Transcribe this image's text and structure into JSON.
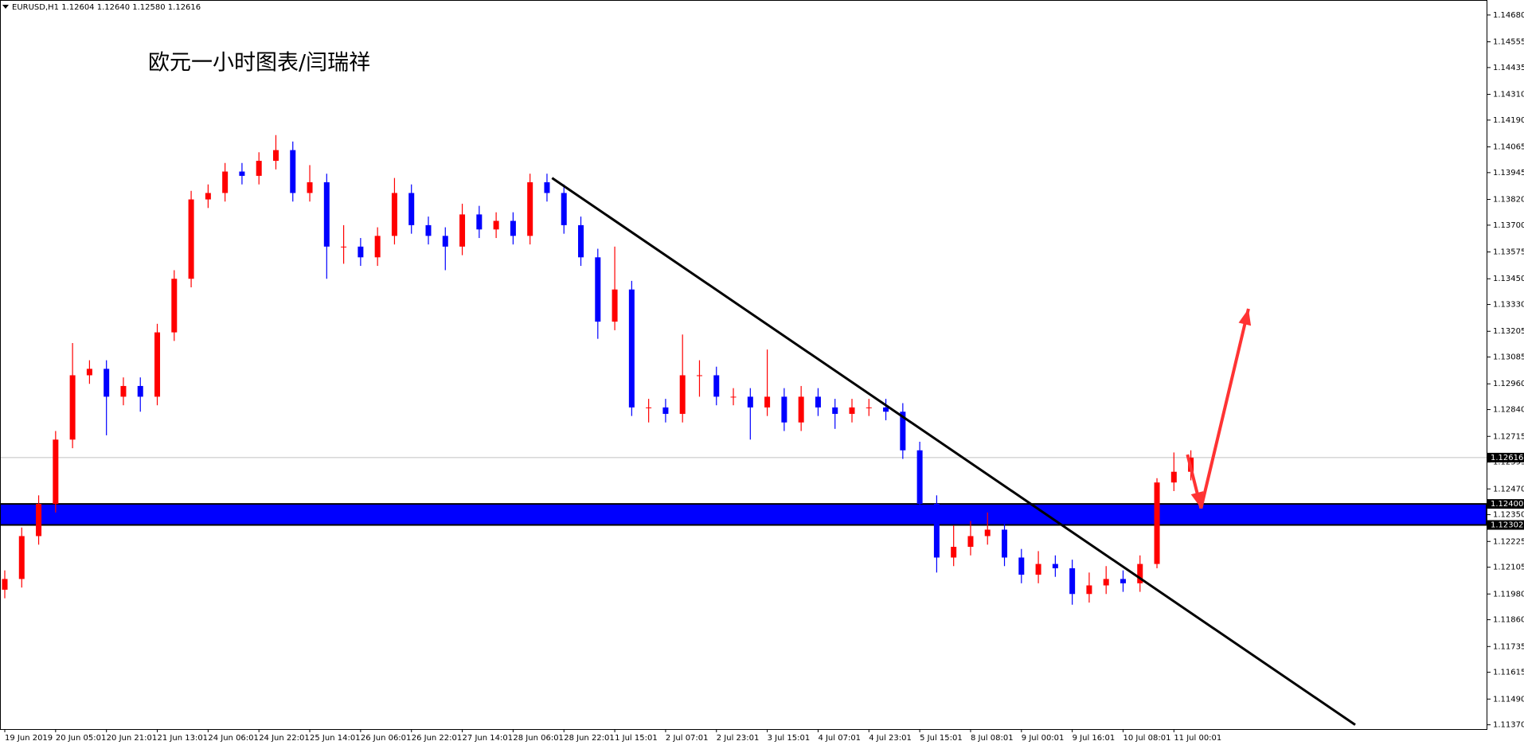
{
  "chart_data": {
    "type": "candlestick",
    "header": "EURUSD,H1  1.12604 1.12640 1.12580 1.12616",
    "title": "欧元一小时图表/闫瑞祥",
    "categories": [
      "19 Jun 2019",
      null,
      null,
      "20 Jun 05:01",
      null,
      null,
      "20 Jun 21:01",
      null,
      null,
      "21 Jun 13:01",
      null,
      null,
      "24 Jun 06:01",
      null,
      null,
      "24 Jun 22:01",
      null,
      null,
      "25 Jun 14:01",
      null,
      null,
      "26 Jun 06:01",
      null,
      null,
      "26 Jun 22:01",
      null,
      null,
      "27 Jun 14:01",
      null,
      null,
      "28 Jun 06:01",
      null,
      null,
      "28 Jun 22:01",
      null,
      null,
      "1 Jul 15:01",
      null,
      null,
      "2 Jul 07:01",
      null,
      null,
      "2 Jul 23:01",
      null,
      null,
      "3 Jul 15:01",
      null,
      null,
      "4 Jul 07:01",
      null,
      null,
      "4 Jul 23:01",
      null,
      null,
      "5 Jul 15:01",
      null,
      null,
      "8 Jul 08:01",
      null,
      null,
      "9 Jul 00:01",
      null,
      null,
      "9 Jul 16:01",
      null,
      null,
      "10 Jul 08:01",
      null,
      null,
      "11 Jul 00:01",
      null
    ],
    "open": [
      1.12,
      1.1205,
      1.1225,
      1.124,
      1.127,
      1.13,
      1.1303,
      1.129,
      1.1295,
      1.129,
      1.132,
      1.1345,
      1.1382,
      1.1385,
      1.1395,
      1.1393,
      1.14,
      1.1405,
      1.1385,
      1.139,
      1.136,
      1.136,
      1.1355,
      1.1365,
      1.1385,
      1.137,
      1.1365,
      1.136,
      1.1375,
      1.1368,
      1.1372,
      1.1365,
      1.139,
      1.1385,
      1.137,
      1.1355,
      1.1325,
      1.134,
      1.1285,
      1.1285,
      1.1282,
      1.13,
      1.13,
      1.129,
      1.129,
      1.1285,
      1.129,
      1.1278,
      1.129,
      1.1285,
      1.1282,
      1.1285,
      1.1285,
      1.1283,
      1.1265,
      1.124,
      1.1215,
      1.122,
      1.1225,
      1.1228,
      1.1215,
      1.1207,
      1.1212,
      1.121,
      1.1198,
      1.1202,
      1.1205,
      1.1203,
      1.1212,
      1.125,
      1.1255
    ],
    "high": [
      1.1209,
      1.1229,
      1.1244,
      1.1274,
      1.1315,
      1.1307,
      1.1307,
      1.1299,
      1.1299,
      1.1324,
      1.1349,
      1.1386,
      1.1389,
      1.1399,
      1.1399,
      1.1404,
      1.1412,
      1.1409,
      1.1398,
      1.1394,
      1.137,
      1.1364,
      1.1369,
      1.1392,
      1.1389,
      1.1374,
      1.1369,
      1.138,
      1.1379,
      1.1376,
      1.1376,
      1.1394,
      1.1394,
      1.1389,
      1.1374,
      1.1359,
      1.136,
      1.1344,
      1.1289,
      1.1289,
      1.1319,
      1.1307,
      1.1304,
      1.1294,
      1.1294,
      1.1312,
      1.1294,
      1.1295,
      1.1294,
      1.1289,
      1.1289,
      1.1289,
      1.1289,
      1.1287,
      1.1269,
      1.1244,
      1.123,
      1.1232,
      1.1236,
      1.1232,
      1.1219,
      1.1218,
      1.1216,
      1.1214,
      1.1208,
      1.1211,
      1.1209,
      1.1216,
      1.1252,
      1.1264,
      1.1265
    ],
    "low": [
      1.1196,
      1.1201,
      1.1221,
      1.1236,
      1.1266,
      1.1296,
      1.1272,
      1.1286,
      1.1283,
      1.1286,
      1.1316,
      1.1341,
      1.1378,
      1.1381,
      1.1389,
      1.1389,
      1.1396,
      1.1381,
      1.1381,
      1.1345,
      1.1352,
      1.1351,
      1.1351,
      1.1361,
      1.1366,
      1.1361,
      1.1349,
      1.1356,
      1.1364,
      1.1364,
      1.1361,
      1.1361,
      1.1381,
      1.1366,
      1.1351,
      1.1317,
      1.1321,
      1.1281,
      1.1278,
      1.1278,
      1.1278,
      1.129,
      1.1286,
      1.1286,
      1.127,
      1.1281,
      1.1274,
      1.1274,
      1.1281,
      1.1275,
      1.1278,
      1.1281,
      1.1279,
      1.1261,
      1.1236,
      1.1208,
      1.1211,
      1.1216,
      1.1221,
      1.1211,
      1.1203,
      1.1203,
      1.1206,
      1.1193,
      1.1194,
      1.1198,
      1.1199,
      1.1199,
      1.121,
      1.1246,
      1.1251
    ],
    "close": [
      1.1205,
      1.1225,
      1.124,
      1.127,
      1.13,
      1.1303,
      1.129,
      1.1295,
      1.129,
      1.132,
      1.1345,
      1.1382,
      1.1385,
      1.1395,
      1.1393,
      1.14,
      1.1405,
      1.1385,
      1.139,
      1.136,
      1.136,
      1.1355,
      1.1365,
      1.1385,
      1.137,
      1.1365,
      1.136,
      1.1375,
      1.1368,
      1.1372,
      1.1365,
      1.139,
      1.1385,
      1.137,
      1.1355,
      1.1325,
      1.134,
      1.1285,
      1.1285,
      1.1282,
      1.13,
      1.13,
      1.129,
      1.129,
      1.1285,
      1.129,
      1.1278,
      1.129,
      1.1285,
      1.1282,
      1.1285,
      1.1285,
      1.1283,
      1.1265,
      1.124,
      1.1215,
      1.122,
      1.1225,
      1.1228,
      1.1215,
      1.1207,
      1.1212,
      1.121,
      1.1198,
      1.1202,
      1.1205,
      1.1203,
      1.1212,
      1.125,
      1.1255,
      1.12616
    ],
    "up_color": "#ff0000",
    "down_color": "#0000ff",
    "ylim": [
      1.1135,
      1.1475
    ],
    "yticks": [
      {
        "value": 1.1468,
        "label": "1.14680"
      },
      1.14555,
      1.14435,
      {
        "value": 1.1431,
        "label": "1.14310"
      },
      {
        "value": 1.1419,
        "label": "1.14190"
      },
      1.14065,
      1.13945,
      {
        "value": 1.1382,
        "label": "1.13820"
      },
      {
        "value": 1.137,
        "label": "1.13700"
      },
      1.13575,
      {
        "value": 1.1345,
        "label": "1.13450"
      },
      {
        "value": 1.1333,
        "label": "1.13330"
      },
      1.13205,
      1.13085,
      {
        "value": 1.1296,
        "label": "1.12960"
      },
      {
        "value": 1.1284,
        "label": "1.12840"
      },
      1.12715,
      1.12595,
      {
        "value": 1.1247,
        "label": "1.12470"
      },
      {
        "value": 1.1235,
        "label": "1.12350"
      },
      1.12225,
      1.12105,
      {
        "value": 1.1198,
        "label": "1.11980"
      },
      {
        "value": 1.1186,
        "label": "1.11860"
      },
      1.11735,
      1.11615,
      {
        "value": 1.1149,
        "label": "1.11490"
      },
      {
        "value": 1.1137,
        "label": "1.11370"
      }
    ],
    "zone": {
      "high": {
        "value": 1.124,
        "label": "1.12400"
      },
      "low": 1.12302,
      "color": "#0000ff"
    },
    "current_price": 1.12616,
    "trendline": {
      "x": [
        32.3,
        79.7
      ],
      "y": [
        1.1392,
        1.1137
      ],
      "color": "#000000"
    },
    "arrow": {
      "x": [
        69.8,
        70.6,
        73.4
      ],
      "y": [
        1.1263,
        1.1238,
        1.1331
      ],
      "color": "#ff3333"
    }
  }
}
